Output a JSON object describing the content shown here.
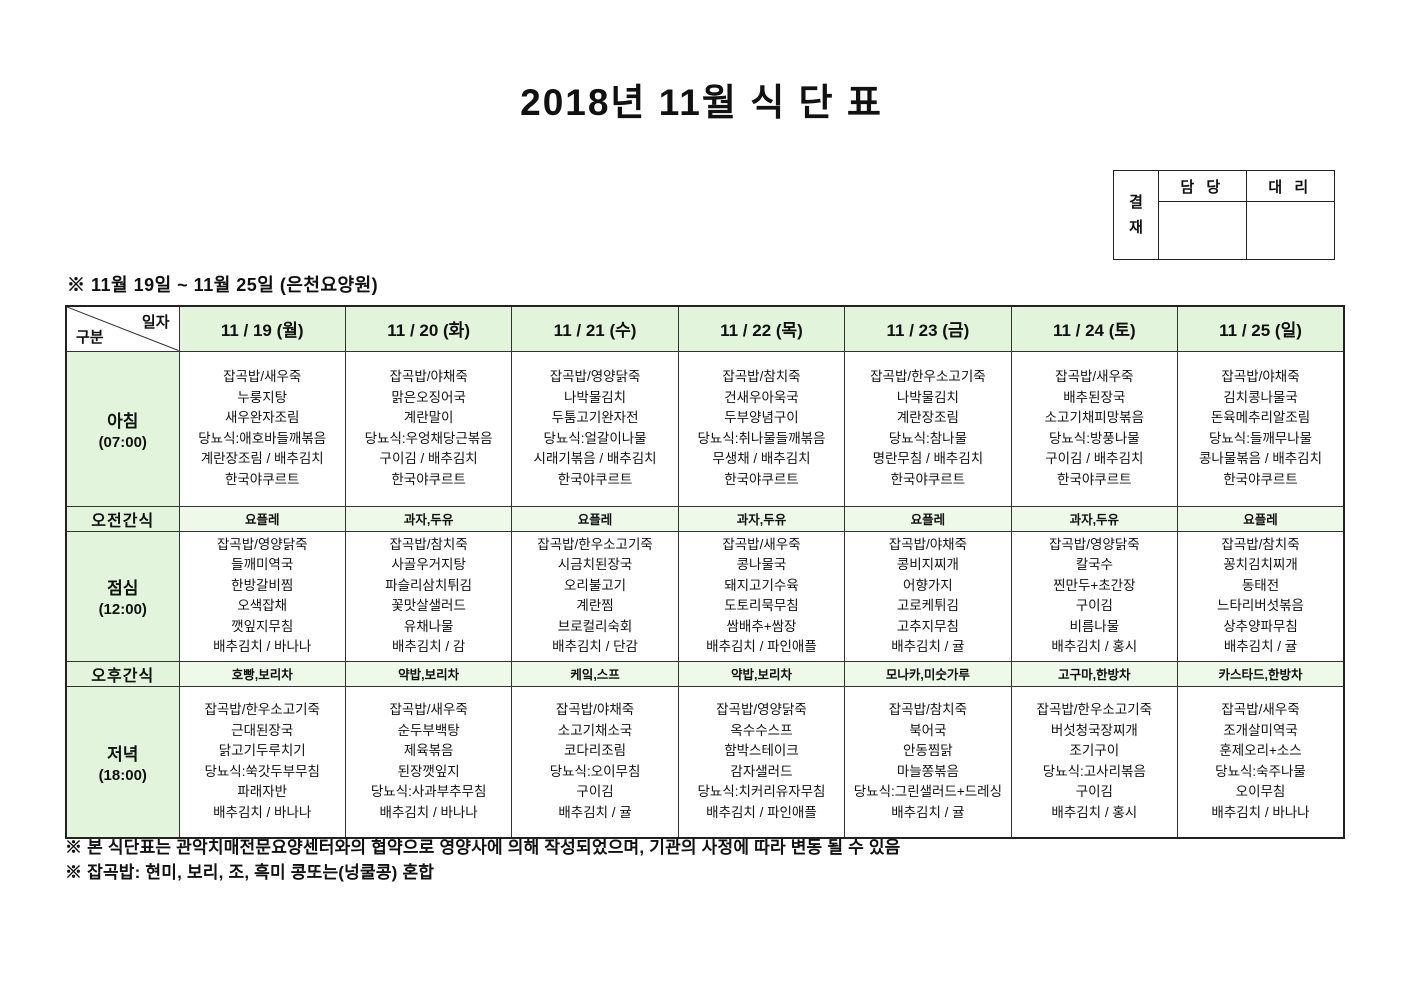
{
  "title": "2018년 11월 식 단 표",
  "approval_box": {
    "stamp_label": "결\n재",
    "columns": [
      "담 당",
      "대 리"
    ]
  },
  "period_note": "※ 11월 19일 ~ 11월 25일 (은천요양원)",
  "colors": {
    "header_green": "#e2f4dc",
    "snack_green": "#eef9e9",
    "border": "#333333"
  },
  "table": {
    "corner": {
      "top_label": "일자",
      "bottom_label": "구분"
    },
    "day_headers": [
      "11 / 19 (월)",
      "11 / 20 (화)",
      "11 / 21 (수)",
      "11 / 22 (목)",
      "11 / 23 (금)",
      "11 / 24 (토)",
      "11 / 25 (일)"
    ],
    "rows": [
      {
        "label": "아침",
        "time": "(07:00)",
        "type": "meal",
        "cells": [
          [
            "잡곡밥/새우죽",
            "누룽지탕",
            "새우완자조림",
            "당뇨식:애호바들깨볶음",
            "계란장조림 / 배추김치",
            "한국야쿠르트"
          ],
          [
            "잡곡밥/야채죽",
            "맑은오징어국",
            "계란말이",
            "당뇨식:우엉채당근볶음",
            "구이김 / 배추김치",
            "한국야쿠르트"
          ],
          [
            "잡곡밥/영양닭죽",
            "나박물김치",
            "두툼고기완자전",
            "당뇨식:얼갈이나물",
            "시래기볶음 / 배추김치",
            "한국야쿠르트"
          ],
          [
            "잡곡밥/참치죽",
            "건새우아욱국",
            "두부양념구이",
            "당뇨식:취나물들깨볶음",
            "무생채 / 배추김치",
            "한국야쿠르트"
          ],
          [
            "잡곡밥/한우소고기죽",
            "나박물김치",
            "계란장조림",
            "당뇨식:참나물",
            "명란무침 / 배추김치",
            "한국야쿠르트"
          ],
          [
            "잡곡밥/새우죽",
            "배추된장국",
            "소고기채피망볶음",
            "당뇨식:방풍나물",
            "구이김 / 배추김치",
            "한국야쿠르트"
          ],
          [
            "잡곡밥/야채죽",
            "김치콩나물국",
            "돈육메추리알조림",
            "당뇨식:들깨무나물",
            "콩나물볶음 / 배추김치",
            "한국야쿠르트"
          ]
        ]
      },
      {
        "label": "오전간식",
        "type": "snack",
        "cells": [
          "요플레",
          "과자,두유",
          "요플레",
          "과자,두유",
          "요플레",
          "과자,두유",
          "요플레"
        ]
      },
      {
        "label": "점심",
        "time": "(12:00)",
        "type": "meal",
        "cells": [
          [
            "잡곡밥/영양닭죽",
            "들깨미역국",
            "한방갈비찜",
            "오색잡채",
            "깻잎지무침",
            "배추김치 / 바나나"
          ],
          [
            "잡곡밥/참치죽",
            "사골우거지탕",
            "파슬리삼치튀김",
            "꽃맛살샐러드",
            "유채나물",
            "배추김치 / 감"
          ],
          [
            "잡곡밥/한우소고기죽",
            "시금치된장국",
            "오리불고기",
            "계란찜",
            "브로컬리숙회",
            "배추김치 / 단감"
          ],
          [
            "잡곡밥/새우죽",
            "콩나물국",
            "돼지고기수육",
            "도토리묵무침",
            "쌈배추+쌈장",
            "배추김치 / 파인애플"
          ],
          [
            "잡곡밥/야채죽",
            "콩비지찌개",
            "어향가지",
            "고로케튀김",
            "고추지무침",
            "배추김치 / 귤"
          ],
          [
            "잡곡밥/영양닭죽",
            "칼국수",
            "찐만두+초간장",
            "구이김",
            "비름나물",
            "배추김치 / 홍시"
          ],
          [
            "잡곡밥/참치죽",
            "꽁치김치찌개",
            "동태전",
            "느타리버섯볶음",
            "상추양파무침",
            "배추김치 / 귤"
          ]
        ]
      },
      {
        "label": "오후간식",
        "type": "snack",
        "cells": [
          "호빵,보리차",
          "약밥,보리차",
          "케잌,스프",
          "약밥,보리차",
          "모나카,미숫가루",
          "고구마,한방차",
          "카스타드,한방차"
        ]
      },
      {
        "label": "저녁",
        "time": "(18:00)",
        "type": "meal",
        "cells": [
          [
            "잡곡밥/한우소고기죽",
            "근대된장국",
            "닭고기두루치기",
            "당뇨식:쑥갓두부무침",
            "파래자반",
            "배추김치 / 바나나"
          ],
          [
            "잡곡밥/새우죽",
            "순두부백탕",
            "제육볶음",
            "된장깻잎지",
            "당뇨식:사과부추무침",
            "배추김치 / 바나나"
          ],
          [
            "잡곡밥/야채죽",
            "소고기채소국",
            "코다리조림",
            "당뇨식:오이무침",
            "구이김",
            "배추김치 / 귤"
          ],
          [
            "잡곡밥/영양닭죽",
            "옥수수스프",
            "함박스테이크",
            "감자샐러드",
            "당뇨식:치커리유자무침",
            "배추김치 / 파인애플"
          ],
          [
            "잡곡밥/참치죽",
            "북어국",
            "안동찜닭",
            "마늘쫑볶음",
            "당뇨식:그린샐러드+드레싱",
            "배추김치 / 귤"
          ],
          [
            "잡곡밥/한우소고기죽",
            "버섯청국장찌개",
            "조기구이",
            "당뇨식:고사리볶음",
            "구이김",
            "배추김치 / 홍시"
          ],
          [
            "잡곡밥/새우죽",
            "조개살미역국",
            "훈제오리+소스",
            "당뇨식:숙주나물",
            "오이무침",
            "배추김치 / 바나나"
          ]
        ]
      }
    ]
  },
  "footnotes": [
    "※ 본 식단표는 관악치매전문요양센터와의 협약으로 영양사에 의해 작성되었으며, 기관의 사정에 따라 변동 될 수 있음",
    "※ 잡곡밥: 현미, 보리, 조, 흑미 콩또는(넝쿨콩) 혼합"
  ]
}
